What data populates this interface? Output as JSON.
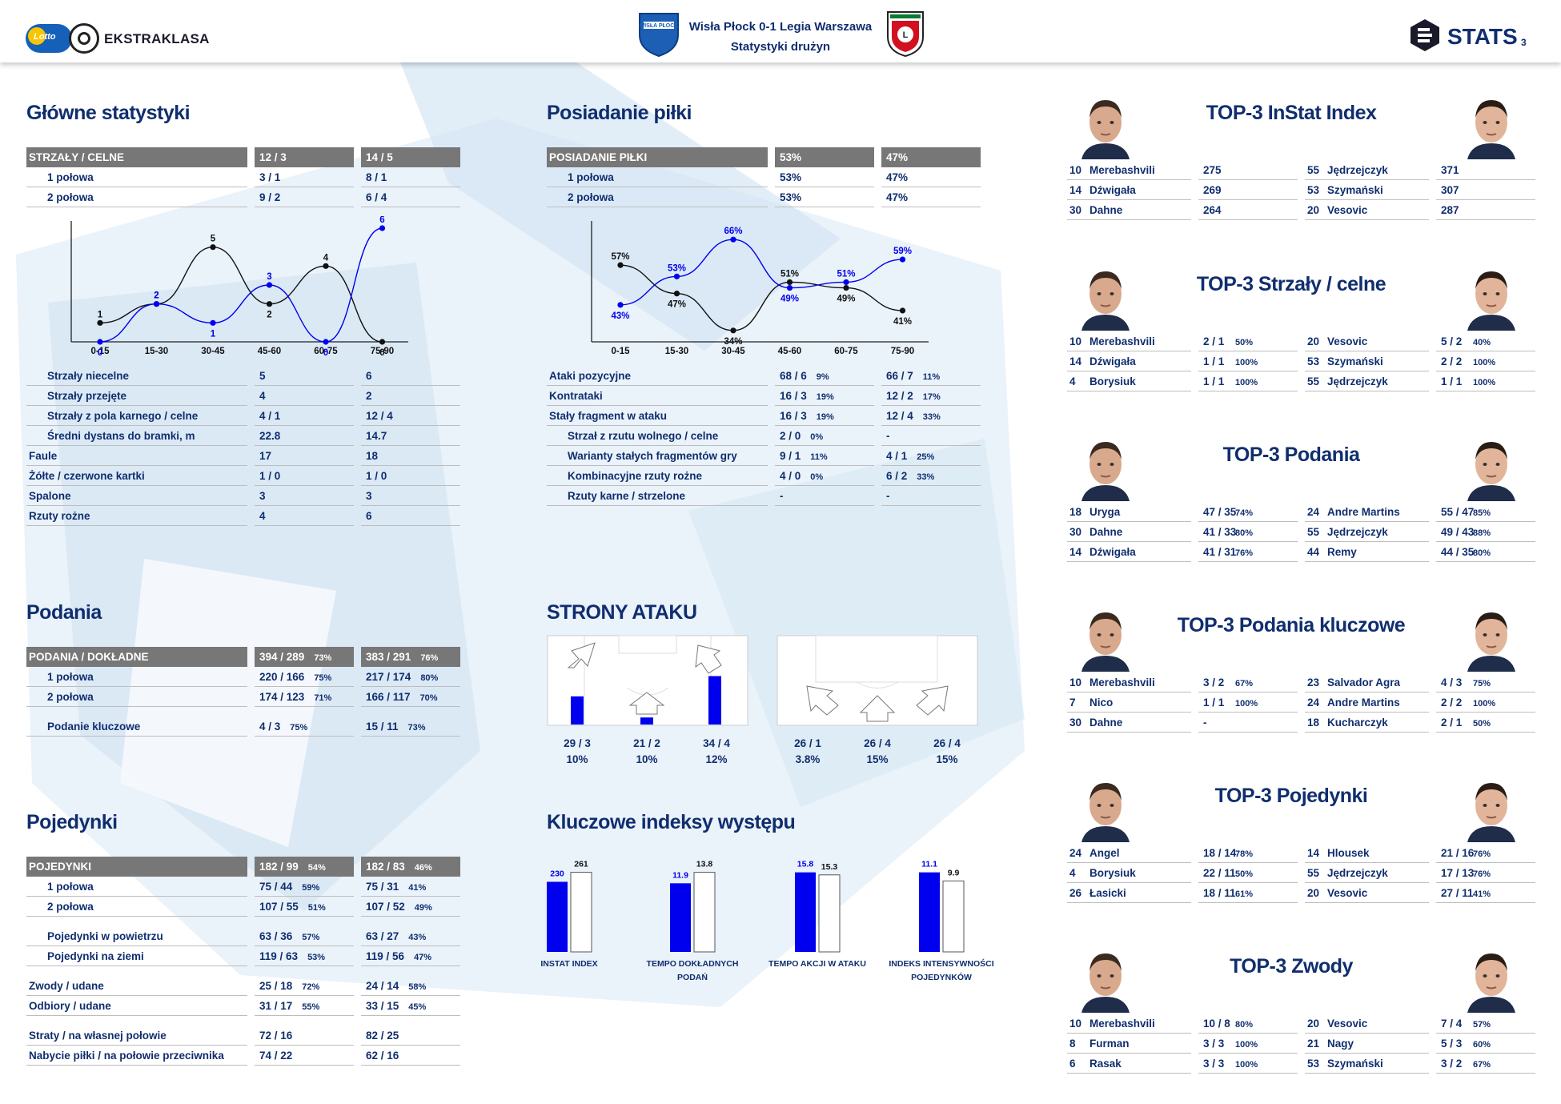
{
  "header": {
    "match": "Wisła Płock 0-1 Legia Warszawa",
    "subtitle": "Statystyki drużyn",
    "brand_lotto": "Lotto",
    "brand_league": "EKSTRAKLASA",
    "stats_label": "STATS",
    "page": "3",
    "home_crest": "WISŁA PŁOCK",
    "colors": {
      "navy": "#102e6e",
      "blue": "#0000ee",
      "grey": "#777777"
    }
  },
  "main_stats": {
    "title": "Główne statystyki",
    "table1": [
      [
        "STRZAŁY / CELNE",
        "12 / 3",
        "14 / 5"
      ],
      [
        "1 połowa",
        "3 / 1",
        "8 / 1"
      ],
      [
        "2 połowa",
        "9 / 2",
        "6 / 4"
      ]
    ],
    "table2": [
      [
        "Strzały niecelne",
        "5",
        "6"
      ],
      [
        "Strzały przejęte",
        "4",
        "2"
      ],
      [
        "Strzały z pola karnego / celne",
        "4 / 1",
        "12 / 4"
      ],
      [
        "Średni dystans do bramki, m",
        "22.8",
        "14.7"
      ],
      [
        "Faule",
        "17",
        "18"
      ],
      [
        "Żółte / czerwone kartki",
        "1 / 0",
        "1 / 0"
      ],
      [
        "Spalone",
        "3",
        "3"
      ],
      [
        "Rzuty rożne",
        "4",
        "6"
      ]
    ]
  },
  "possession": {
    "title": "Posiadanie piłki",
    "table1": [
      [
        "POSIADANIE PIŁKI",
        "53%",
        "47%"
      ],
      [
        "1 połowa",
        "53%",
        "47%"
      ],
      [
        "2 połowa",
        "53%",
        "47%"
      ]
    ],
    "table2": [
      [
        "Ataki pozycyjne",
        "68 / 6",
        "9%",
        "66 / 7",
        "11%"
      ],
      [
        "Kontrataki",
        "16 / 3",
        "19%",
        "12 / 2",
        "17%"
      ],
      [
        "Stały fragment w ataku",
        "16 / 3",
        "19%",
        "12 / 4",
        "33%"
      ],
      [
        "Strzał z rzutu wolnego / celne",
        "2 / 0",
        "0%",
        "-",
        ""
      ],
      [
        "Warianty stałych fragmentów gry",
        "9 / 1",
        "11%",
        "4 / 1",
        "25%"
      ],
      [
        "Kombinacyjne rzuty rożne",
        "4 / 0",
        "0%",
        "6 / 2",
        "33%"
      ],
      [
        "Rzuty karne / strzelone",
        "-",
        "",
        "-",
        ""
      ]
    ]
  },
  "passes": {
    "title": "Podania",
    "rows": [
      [
        "PODANIA / DOKŁADNE",
        "394 / 289",
        "73%",
        "383 / 291",
        "76%"
      ],
      [
        "1 połowa",
        "220 / 166",
        "75%",
        "217 / 174",
        "80%"
      ],
      [
        "2 połowa",
        "174 / 123",
        "71%",
        "166 / 117",
        "70%"
      ],
      [
        "Podanie kluczowe",
        "4 / 3",
        "75%",
        "15 / 11",
        "73%"
      ]
    ]
  },
  "duels": {
    "title": "Pojedynki",
    "rows": [
      [
        "POJEDYNKI",
        "182 / 99",
        "54%",
        "182 / 83",
        "46%"
      ],
      [
        "1 połowa",
        "75 / 44",
        "59%",
        "75 / 31",
        "41%"
      ],
      [
        "2 połowa",
        "107 / 55",
        "51%",
        "107 / 52",
        "49%"
      ],
      [
        "Pojedynki w powietrzu",
        "63 / 36",
        "57%",
        "63 / 27",
        "43%"
      ],
      [
        "Pojedynki na ziemi",
        "119 / 63",
        "53%",
        "119 / 56",
        "47%"
      ],
      [
        "Zwody / udane",
        "25 / 18",
        "72%",
        "24 / 14",
        "58%"
      ],
      [
        "Odbiory / udane",
        "31 / 17",
        "55%",
        "33 / 15",
        "45%"
      ],
      [
        "Straty / na własnej połowie",
        "72 / 16",
        "",
        "82 / 25",
        ""
      ],
      [
        "Nabycie piłki / na połowie przeciwnika",
        "74 / 22",
        "",
        "62 / 16",
        ""
      ]
    ]
  },
  "attack_sides": {
    "title": "STRONY ATAKU",
    "home": [
      {
        "v": "29 / 3",
        "p": "10%",
        "level": 0.32
      },
      {
        "v": "21 / 2",
        "p": "10%",
        "level": 0.08
      },
      {
        "v": "34 / 4",
        "p": "12%",
        "level": 0.55
      }
    ],
    "away": [
      {
        "v": "26 / 1",
        "p": "3.8%"
      },
      {
        "v": "26 / 4",
        "p": "15%"
      },
      {
        "v": "26 / 4",
        "p": "15%"
      }
    ]
  },
  "indices": {
    "title": "Kluczowe indeksy występu",
    "items": [
      {
        "label1": "INSTAT INDEX",
        "label2": "",
        "home": "230",
        "away": "261"
      },
      {
        "label1": "TEMPO DOKŁADNYCH",
        "label2": "PODAŃ",
        "home": "11.9",
        "away": "13.8"
      },
      {
        "label1": "TEMPO AKCJI W ATAKU",
        "label2": "",
        "home": "15.8",
        "away": "15.3"
      },
      {
        "label1": "INDEKS INTENSYWNOŚCI",
        "label2": "POJEDYNKÓW",
        "home": "11.1",
        "away": "9.9"
      }
    ]
  },
  "tops": [
    {
      "title": "TOP-3 InStat Index",
      "rows": [
        [
          "10",
          "Merebashvili",
          "275",
          "",
          "55",
          "Jędrzejczyk",
          "371",
          ""
        ],
        [
          "14",
          "Dźwigała",
          "269",
          "",
          "53",
          "Szymański",
          "307",
          ""
        ],
        [
          "30",
          "Dahne",
          "264",
          "",
          "20",
          "Vesovic",
          "287",
          ""
        ]
      ]
    },
    {
      "title": "TOP-3 Strzały / celne",
      "rows": [
        [
          "10",
          "Merebashvili",
          "2 / 1",
          "50%",
          "20",
          "Vesovic",
          "5 / 2",
          "40%"
        ],
        [
          "14",
          "Dźwigała",
          "1 / 1",
          "100%",
          "53",
          "Szymański",
          "2 / 2",
          "100%"
        ],
        [
          "4",
          "Borysiuk",
          "1 / 1",
          "100%",
          "55",
          "Jędrzejczyk",
          "1 / 1",
          "100%"
        ]
      ]
    },
    {
      "title": "TOP-3 Podania",
      "rows": [
        [
          "18",
          "Uryga",
          "47 / 35",
          "74%",
          "24",
          "Andre Martins",
          "55 / 47",
          "85%"
        ],
        [
          "30",
          "Dahne",
          "41 / 33",
          "80%",
          "55",
          "Jędrzejczyk",
          "49 / 43",
          "88%"
        ],
        [
          "14",
          "Dźwigała",
          "41 / 31",
          "76%",
          "44",
          "Remy",
          "44 / 35",
          "80%"
        ]
      ]
    },
    {
      "title": "TOP-3 Podania kluczowe",
      "rows": [
        [
          "10",
          "Merebashvili",
          "3 / 2",
          "67%",
          "23",
          "Salvador Agra",
          "4 / 3",
          "75%"
        ],
        [
          "7",
          "Nico",
          "1 / 1",
          "100%",
          "24",
          "Andre Martins",
          "2 / 2",
          "100%"
        ],
        [
          "30",
          "Dahne",
          "-",
          "",
          "18",
          "Kucharczyk",
          "2 / 1",
          "50%"
        ]
      ]
    },
    {
      "title": "TOP-3 Pojedynki",
      "rows": [
        [
          "24",
          "Angel",
          "18 / 14",
          "78%",
          "14",
          "Hlousek",
          "21 / 16",
          "76%"
        ],
        [
          "4",
          "Borysiuk",
          "22 / 11",
          "50%",
          "55",
          "Jędrzejczyk",
          "17 / 13",
          "76%"
        ],
        [
          "26",
          "Łasicki",
          "18 / 11",
          "61%",
          "20",
          "Vesovic",
          "27 / 11",
          "41%"
        ]
      ]
    },
    {
      "title": "TOP-3 Zwody",
      "rows": [
        [
          "10",
          "Merebashvili",
          "10 / 8",
          "80%",
          "20",
          "Vesovic",
          "7 / 4",
          "57%"
        ],
        [
          "8",
          "Furman",
          "3 / 3",
          "100%",
          "21",
          "Nagy",
          "5 / 3",
          "60%"
        ],
        [
          "6",
          "Rasak",
          "3 / 3",
          "100%",
          "53",
          "Szymański",
          "3 / 2",
          "67%"
        ]
      ]
    }
  ],
  "chart_data": [
    {
      "type": "line",
      "title": "",
      "categories": [
        "0-15",
        "15-30",
        "30-45",
        "45-60",
        "60-75",
        "75-90"
      ],
      "series": [
        {
          "values": [
            1,
            2,
            5,
            2,
            4,
            0
          ]
        },
        {
          "values": [
            0,
            2,
            1,
            3,
            0,
            6
          ]
        }
      ],
      "ylim": [
        0,
        6
      ]
    },
    {
      "type": "line",
      "title": "",
      "categories": [
        "0-15",
        "15-30",
        "30-45",
        "45-60",
        "60-75",
        "75-90"
      ],
      "series": [
        {
          "values": [
            57,
            47,
            34,
            51,
            49,
            41
          ]
        },
        {
          "values": [
            43,
            53,
            66,
            49,
            51,
            59
          ]
        }
      ],
      "ylim": [
        30,
        70
      ]
    },
    {
      "type": "bar",
      "title": "",
      "categories": [
        "INSTAT INDEX",
        "TEMPO DOKŁADNYCH PODAŃ",
        "TEMPO AKCJI W ATAKU",
        "INDEKS INTENSYWNOŚCI POJEDYNKÓW"
      ],
      "series": [
        {
          "values": [
            230,
            11.9,
            15.8,
            11.1
          ]
        },
        {
          "values": [
            261,
            13.8,
            15.3,
            9.9
          ]
        }
      ]
    }
  ]
}
